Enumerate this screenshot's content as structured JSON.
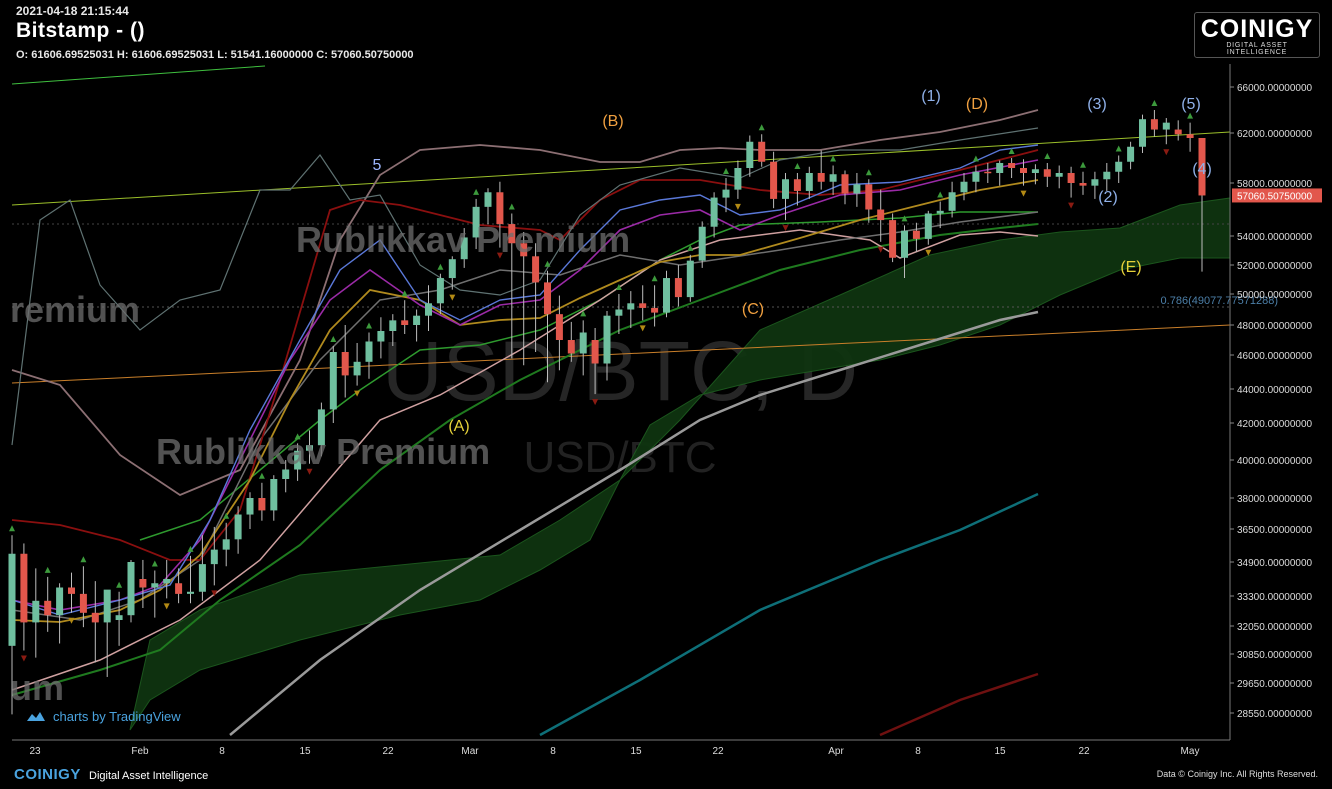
{
  "header": {
    "timestamp": "2021-04-18 21:15:44",
    "title": "Bitstamp -  ()",
    "ohlc": "O: 61606.69525031 H: 61606.69525031 L: 51541.16000000 C: 57060.50750000"
  },
  "brand": {
    "name": "COINIGY",
    "tagline": "DIGITAL ASSET INTELLIGENCE"
  },
  "footer": {
    "brand": "COINIGY",
    "tagline": "Digital Asset Intelligence",
    "copyright": "Data © Coinigy Inc.  All Rights Reserved."
  },
  "tradingview": {
    "text": "charts by TradingView"
  },
  "chart_data": {
    "type": "candlestick",
    "symbol_watermark": "USD/BTC, D",
    "watermark_small": "USD/BTC",
    "overlay_text": [
      "Rublikkav Premium",
      "Rublikkav Premium",
      "remium",
      "um"
    ],
    "x_tick_labels": [
      "23",
      "Feb",
      "8",
      "15",
      "22",
      "Mar",
      "8",
      "15",
      "22",
      "Apr",
      "8",
      "15",
      "22",
      "May"
    ],
    "y_tick_labels": [
      "66000.00000000",
      "62000.00000000",
      "58000.00000000",
      "54000.00000000",
      "52000.00000000",
      "50000.00000000",
      "48000.00000000",
      "46000.00000000",
      "44000.00000000",
      "42000.00000000",
      "40000.00000000",
      "38000.00000000",
      "36500.00000000",
      "34900.00000000",
      "33300.00000000",
      "32050.00000000",
      "30850.00000000",
      "29650.00000000",
      "28550.00000000"
    ],
    "last_price_label": "57060.50750000",
    "fib_label": "0.786(49077.77571288)",
    "up_color": "#6fbf9f",
    "down_color": "#e2574c",
    "candles": [
      {
        "o": 31200,
        "h": 36200,
        "l": 28500,
        "c": 35300
      },
      {
        "o": 35300,
        "h": 35800,
        "l": 31000,
        "c": 32200
      },
      {
        "o": 32200,
        "h": 34600,
        "l": 30700,
        "c": 33100
      },
      {
        "o": 33100,
        "h": 34200,
        "l": 31800,
        "c": 32500
      },
      {
        "o": 32500,
        "h": 33900,
        "l": 31300,
        "c": 33700
      },
      {
        "o": 33700,
        "h": 34400,
        "l": 32600,
        "c": 33400
      },
      {
        "o": 33400,
        "h": 34700,
        "l": 32000,
        "c": 32600
      },
      {
        "o": 32600,
        "h": 34000,
        "l": 30500,
        "c": 32200
      },
      {
        "o": 32200,
        "h": 33400,
        "l": 29900,
        "c": 33600
      },
      {
        "o": 32300,
        "h": 33500,
        "l": 31200,
        "c": 32500
      },
      {
        "o": 32500,
        "h": 35000,
        "l": 32200,
        "c": 34900
      },
      {
        "o": 34100,
        "h": 35000,
        "l": 32800,
        "c": 33700
      },
      {
        "o": 33700,
        "h": 34500,
        "l": 32400,
        "c": 33900
      },
      {
        "o": 33900,
        "h": 35000,
        "l": 33200,
        "c": 34100
      },
      {
        "o": 33900,
        "h": 34600,
        "l": 33000,
        "c": 33400
      },
      {
        "o": 33400,
        "h": 35200,
        "l": 33000,
        "c": 33500
      },
      {
        "o": 33500,
        "h": 36200,
        "l": 33100,
        "c": 34800
      },
      {
        "o": 34800,
        "h": 36600,
        "l": 33800,
        "c": 35500
      },
      {
        "o": 35500,
        "h": 36800,
        "l": 34700,
        "c": 36000
      },
      {
        "o": 36000,
        "h": 37600,
        "l": 35300,
        "c": 37200
      },
      {
        "o": 37200,
        "h": 38300,
        "l": 36500,
        "c": 38000
      },
      {
        "o": 38000,
        "h": 38800,
        "l": 36900,
        "c": 37400
      },
      {
        "o": 37400,
        "h": 39200,
        "l": 36900,
        "c": 39000
      },
      {
        "o": 39000,
        "h": 40000,
        "l": 38300,
        "c": 39500
      },
      {
        "o": 39500,
        "h": 40900,
        "l": 38900,
        "c": 40500
      },
      {
        "o": 40500,
        "h": 41600,
        "l": 39800,
        "c": 40800
      },
      {
        "o": 40800,
        "h": 43200,
        "l": 40200,
        "c": 42800
      },
      {
        "o": 42800,
        "h": 46600,
        "l": 42000,
        "c": 46200
      },
      {
        "o": 46200,
        "h": 48000,
        "l": 43500,
        "c": 44800
      },
      {
        "o": 44800,
        "h": 46800,
        "l": 44200,
        "c": 45600
      },
      {
        "o": 45600,
        "h": 47500,
        "l": 44600,
        "c": 46900
      },
      {
        "o": 46900,
        "h": 48500,
        "l": 45800,
        "c": 47600
      },
      {
        "o": 47600,
        "h": 48700,
        "l": 46600,
        "c": 48300
      },
      {
        "o": 48300,
        "h": 49600,
        "l": 47400,
        "c": 48000
      },
      {
        "o": 48000,
        "h": 49000,
        "l": 46900,
        "c": 48600
      },
      {
        "o": 48600,
        "h": 50600,
        "l": 47600,
        "c": 49400
      },
      {
        "o": 49400,
        "h": 51400,
        "l": 48700,
        "c": 51100
      },
      {
        "o": 51100,
        "h": 52600,
        "l": 50300,
        "c": 52400
      },
      {
        "o": 52400,
        "h": 54600,
        "l": 51800,
        "c": 53900
      },
      {
        "o": 53900,
        "h": 56800,
        "l": 53100,
        "c": 56200
      },
      {
        "o": 56200,
        "h": 57600,
        "l": 54900,
        "c": 57300
      },
      {
        "o": 57300,
        "h": 58100,
        "l": 53200,
        "c": 54900
      },
      {
        "o": 54900,
        "h": 55700,
        "l": 45800,
        "c": 53500
      },
      {
        "o": 53500,
        "h": 54300,
        "l": 45400,
        "c": 52600
      },
      {
        "o": 52600,
        "h": 53500,
        "l": 46200,
        "c": 50800
      },
      {
        "o": 50800,
        "h": 51600,
        "l": 44400,
        "c": 48700
      },
      {
        "o": 48700,
        "h": 49900,
        "l": 45100,
        "c": 47000
      },
      {
        "o": 47000,
        "h": 48200,
        "l": 45600,
        "c": 46100
      },
      {
        "o": 46100,
        "h": 48300,
        "l": 44800,
        "c": 47500
      },
      {
        "o": 47000,
        "h": 47800,
        "l": 43700,
        "c": 45500
      },
      {
        "o": 45500,
        "h": 48900,
        "l": 44500,
        "c": 48600
      },
      {
        "o": 48600,
        "h": 50000,
        "l": 47400,
        "c": 49000
      },
      {
        "o": 49000,
        "h": 50200,
        "l": 47800,
        "c": 49400
      },
      {
        "o": 49400,
        "h": 50600,
        "l": 48300,
        "c": 49100
      },
      {
        "o": 49100,
        "h": 50600,
        "l": 47900,
        "c": 48800
      },
      {
        "o": 48800,
        "h": 51600,
        "l": 48500,
        "c": 51100
      },
      {
        "o": 51100,
        "h": 52000,
        "l": 49200,
        "c": 49800
      },
      {
        "o": 49800,
        "h": 52700,
        "l": 49500,
        "c": 52300
      },
      {
        "o": 52300,
        "h": 55100,
        "l": 51800,
        "c": 54700
      },
      {
        "o": 54700,
        "h": 57300,
        "l": 53900,
        "c": 56900
      },
      {
        "o": 56900,
        "h": 58400,
        "l": 55800,
        "c": 57500
      },
      {
        "o": 57500,
        "h": 59800,
        "l": 56800,
        "c": 59200
      },
      {
        "o": 59200,
        "h": 61800,
        "l": 58500,
        "c": 61300
      },
      {
        "o": 61300,
        "h": 61900,
        "l": 59300,
        "c": 59700
      },
      {
        "o": 59700,
        "h": 60500,
        "l": 56100,
        "c": 56800
      },
      {
        "o": 56800,
        "h": 58800,
        "l": 55200,
        "c": 58300
      },
      {
        "o": 58300,
        "h": 58800,
        "l": 56300,
        "c": 57400
      },
      {
        "o": 57400,
        "h": 59300,
        "l": 56800,
        "c": 58800
      },
      {
        "o": 58800,
        "h": 60600,
        "l": 57500,
        "c": 58100
      },
      {
        "o": 58100,
        "h": 59400,
        "l": 57100,
        "c": 58700
      },
      {
        "o": 58700,
        "h": 59000,
        "l": 56400,
        "c": 57200
      },
      {
        "o": 57200,
        "h": 58800,
        "l": 56200,
        "c": 57900
      },
      {
        "o": 57900,
        "h": 58300,
        "l": 55000,
        "c": 56000
      },
      {
        "o": 56000,
        "h": 57500,
        "l": 53600,
        "c": 55200
      },
      {
        "o": 55200,
        "h": 55700,
        "l": 52200,
        "c": 52500
      },
      {
        "o": 52500,
        "h": 54800,
        "l": 51100,
        "c": 54400
      },
      {
        "o": 54400,
        "h": 55000,
        "l": 52900,
        "c": 53800
      },
      {
        "o": 53800,
        "h": 55900,
        "l": 53400,
        "c": 55700
      },
      {
        "o": 55700,
        "h": 56600,
        "l": 54600,
        "c": 55900
      },
      {
        "o": 55900,
        "h": 58100,
        "l": 55400,
        "c": 57300
      },
      {
        "o": 57300,
        "h": 58800,
        "l": 56700,
        "c": 58100
      },
      {
        "o": 58100,
        "h": 59400,
        "l": 57300,
        "c": 58900
      },
      {
        "o": 58900,
        "h": 59600,
        "l": 58000,
        "c": 58800
      },
      {
        "o": 58800,
        "h": 59800,
        "l": 57800,
        "c": 59600
      },
      {
        "o": 59600,
        "h": 60000,
        "l": 58400,
        "c": 59200
      },
      {
        "o": 59200,
        "h": 59900,
        "l": 57800,
        "c": 58800
      },
      {
        "o": 58800,
        "h": 59500,
        "l": 57900,
        "c": 59100
      },
      {
        "o": 59100,
        "h": 59600,
        "l": 57700,
        "c": 58500
      },
      {
        "o": 58500,
        "h": 59400,
        "l": 57600,
        "c": 58800
      },
      {
        "o": 58800,
        "h": 59300,
        "l": 56900,
        "c": 58000
      },
      {
        "o": 58000,
        "h": 58900,
        "l": 57100,
        "c": 57800
      },
      {
        "o": 57800,
        "h": 58900,
        "l": 56800,
        "c": 58300
      },
      {
        "o": 58300,
        "h": 59600,
        "l": 57400,
        "c": 58900
      },
      {
        "o": 58900,
        "h": 60200,
        "l": 58000,
        "c": 59700
      },
      {
        "o": 59700,
        "h": 61300,
        "l": 59100,
        "c": 60900
      },
      {
        "o": 60900,
        "h": 63600,
        "l": 60400,
        "c": 63200
      },
      {
        "o": 63200,
        "h": 64000,
        "l": 61700,
        "c": 62300
      },
      {
        "o": 62300,
        "h": 63300,
        "l": 61100,
        "c": 62900
      },
      {
        "o": 62300,
        "h": 63100,
        "l": 61400,
        "c": 61900
      },
      {
        "o": 61900,
        "h": 62900,
        "l": 60500,
        "c": 61600
      },
      {
        "o": 61600,
        "h": 61600,
        "l": 51541,
        "c": 57060
      }
    ],
    "wave_labels": [
      {
        "text": "5",
        "color": "#9fb8ff"
      },
      {
        "text": "(B)",
        "color": "#f0a040"
      },
      {
        "text": "(A)",
        "color": "#e6d23a"
      },
      {
        "text": "(C)",
        "color": "#f0a040"
      },
      {
        "text": "(1)",
        "color": "#8fb0e8"
      },
      {
        "text": "(D)",
        "color": "#f0a040"
      },
      {
        "text": "(3)",
        "color": "#8fb0e8"
      },
      {
        "text": "(5)",
        "color": "#8fb0e8"
      },
      {
        "text": "(4)",
        "color": "#8fb0e8"
      },
      {
        "text": "(2)",
        "color": "#8fb0e8"
      },
      {
        "text": "(E)",
        "color": "#e6d23a"
      }
    ]
  }
}
